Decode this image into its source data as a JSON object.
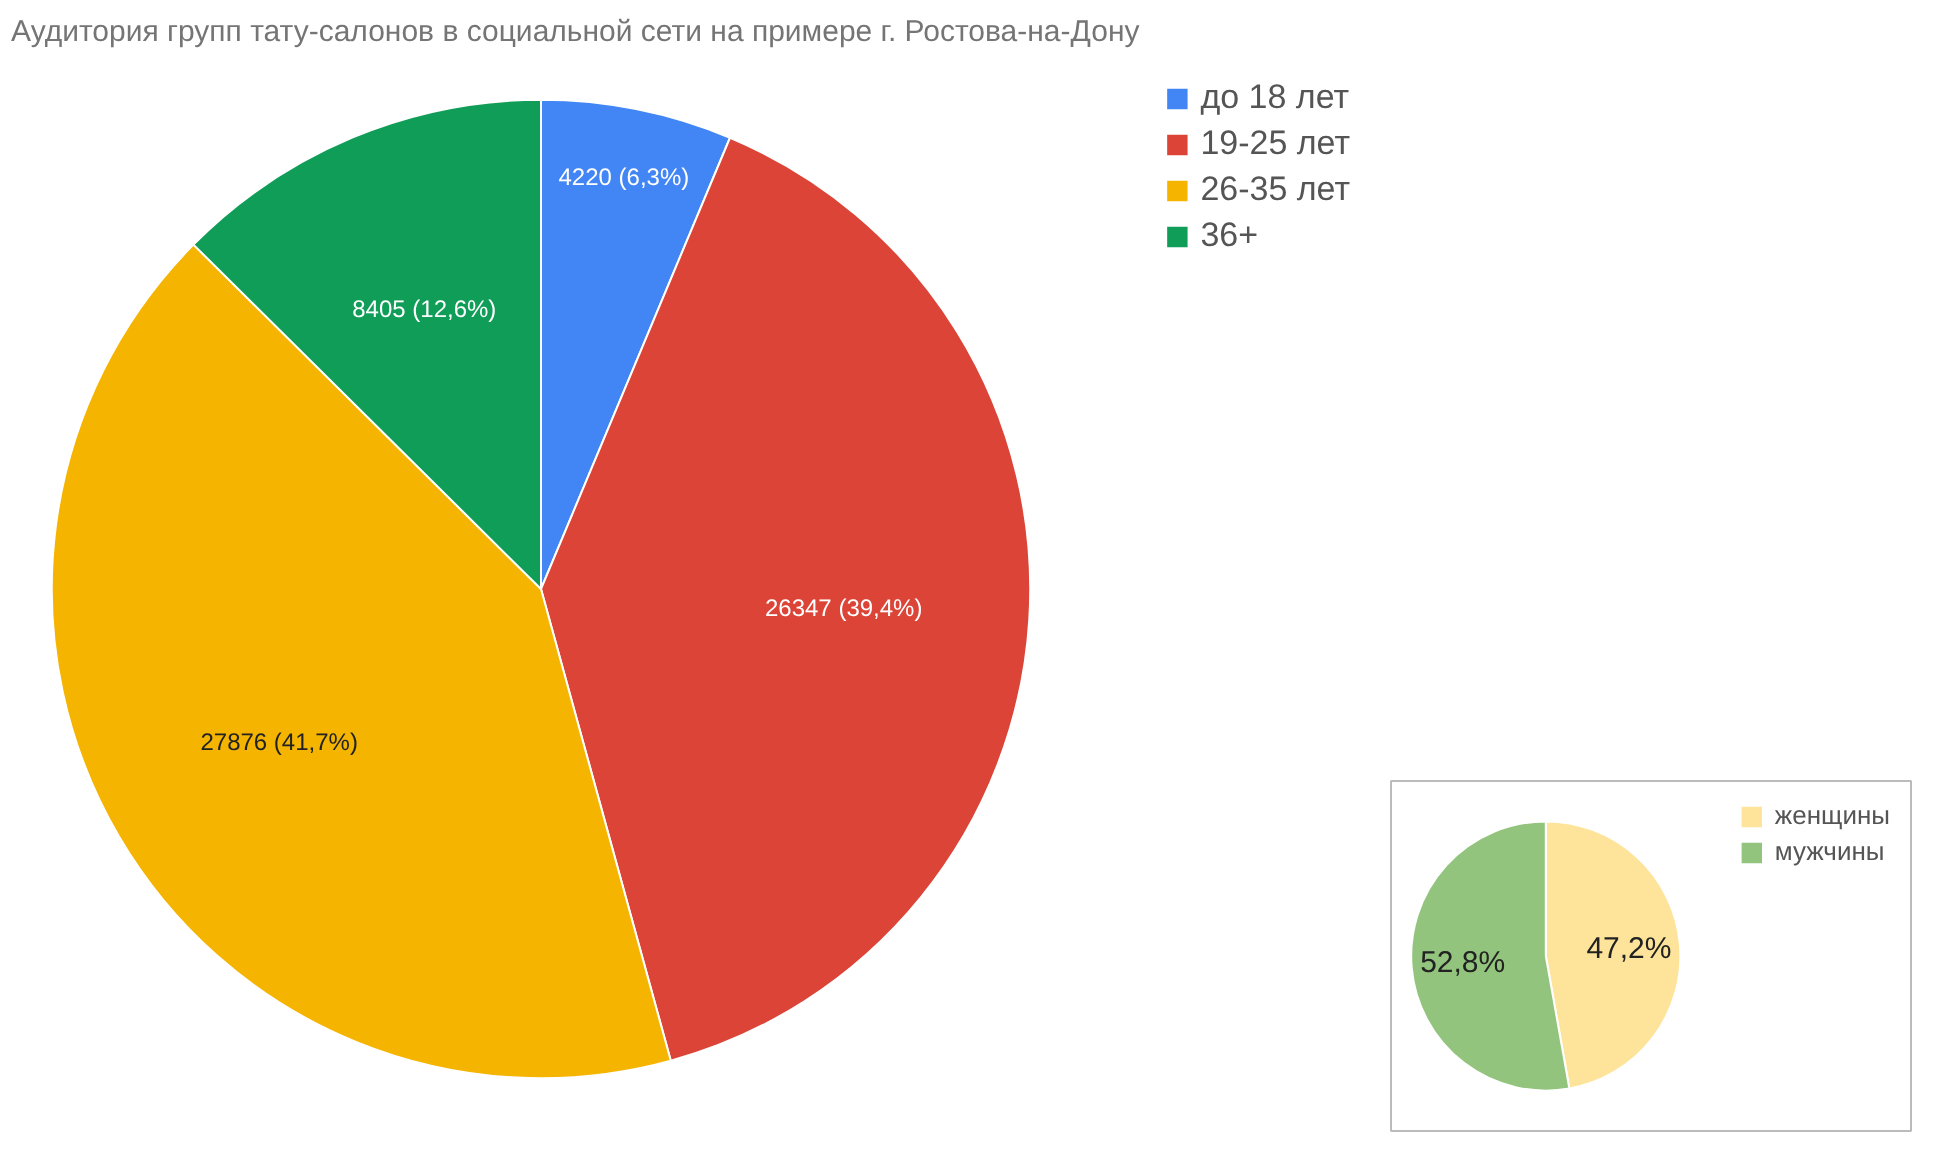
{
  "chart_data": [
    {
      "type": "pie",
      "title": "Аудитория групп тату-салонов в социальной сети на примере г. Ростова-на-Дону",
      "categories": [
        "до 18 лет",
        "19-25 лет",
        "26-35 лет",
        "36+"
      ],
      "values": [
        4220,
        26347,
        27876,
        8405
      ],
      "colors": [
        "#4285f4",
        "#db4437",
        "#f4b400",
        "#0f9d58"
      ],
      "value_labels": [
        "4220 (6,3%)",
        "26347 (39,4%)",
        "27876 (41,7%)",
        "8405 (12,6%)"
      ],
      "legend": "top right"
    },
    {
      "type": "pie",
      "categories": [
        "женщины",
        "мужчины"
      ],
      "values": [
        47.2,
        52.8
      ],
      "colors": [
        "#fee49a",
        "#93c47d"
      ],
      "value_labels": [
        "47,2%",
        "52,8%"
      ],
      "legend": "top right"
    }
  ]
}
